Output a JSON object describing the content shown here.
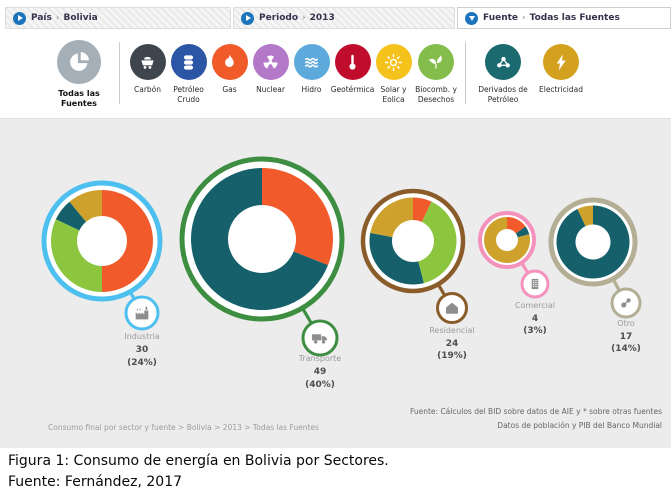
{
  "filter_bar": {
    "chevron": "›",
    "filters": [
      {
        "name": "País",
        "value": "Bolivia",
        "state": "collapsed"
      },
      {
        "name": "Periodo",
        "value": "2013",
        "state": "collapsed"
      },
      {
        "name": "Fuente",
        "value": "Todas las Fuentes",
        "state": "expanded"
      }
    ]
  },
  "sources": {
    "items": [
      {
        "label": "Todas las Fuentes",
        "icon": "pie-chart",
        "color": "#A4AFB7"
      },
      {
        "label": "Carbón",
        "icon": "coal-cart",
        "color": "#3E454C"
      },
      {
        "label": "Petróleo Crudo",
        "icon": "oil-barrels",
        "color": "#2B55A5"
      },
      {
        "label": "Gas",
        "icon": "flame",
        "color": "#F15A29"
      },
      {
        "label": "Nuclear",
        "icon": "radiation",
        "color": "#B478C8"
      },
      {
        "label": "Hidro",
        "icon": "water-waves",
        "color": "#5EA9DB"
      },
      {
        "label": "Geotérmica",
        "icon": "thermometer",
        "color": "#C00D2E"
      },
      {
        "label": "Solar y Eolica",
        "icon": "sun",
        "color": "#F5C21B"
      },
      {
        "label": "Biocomb. y Desechos",
        "icon": "leaves",
        "color": "#85BD4C"
      },
      {
        "label": "Derivados de Petróleo",
        "icon": "molecule",
        "color": "#1B6A70"
      },
      {
        "label": "Electricidad",
        "icon": "lightning",
        "color": "#D4A11E"
      }
    ]
  },
  "chart_data": {
    "type": "pie",
    "title": "Consumo final por sector y fuente, Bolivia 2013",
    "legend_note": "segment colors correspond to energy sources; percentages of each ring estimated from arc angles",
    "source_colors": {
      "Gas": "#F15B2B",
      "Biocomb. y Desechos": "#8CC63F",
      "Derivados de Petróleo": "#15606B",
      "Electricidad": "#CDA12C"
    },
    "sectors": [
      {
        "label": "Industria",
        "value": 30,
        "share": "(24%)",
        "ring_color": "#4EC0F0",
        "icon": "factory",
        "segments": [
          {
            "source": "Gas",
            "pct": 50
          },
          {
            "source": "Biocomb. y Desechos",
            "pct": 32
          },
          {
            "source": "Derivados de Petróleo",
            "pct": 7
          },
          {
            "source": "Electricidad",
            "pct": 11
          }
        ]
      },
      {
        "label": "Transporte",
        "value": 49,
        "share": "(40%)",
        "ring_color": "#3E8E41",
        "icon": "truck",
        "segments": [
          {
            "source": "Gas",
            "pct": 31
          },
          {
            "source": "Derivados de Petróleo",
            "pct": 69
          }
        ]
      },
      {
        "label": "Residencial",
        "value": 24,
        "share": "(19%)",
        "ring_color": "#8A5C2A",
        "icon": "house",
        "segments": [
          {
            "source": "Gas",
            "pct": 7
          },
          {
            "source": "Biocomb. y Desechos",
            "pct": 39
          },
          {
            "source": "Derivados de Petróleo",
            "pct": 32
          },
          {
            "source": "Electricidad",
            "pct": 22
          }
        ]
      },
      {
        "label": "Comercial",
        "value": 4,
        "share": "(3%)",
        "ring_color": "#F492BD",
        "icon": "office-building",
        "segments": [
          {
            "source": "Gas",
            "pct": 15
          },
          {
            "source": "Derivados de Petróleo",
            "pct": 6
          },
          {
            "source": "Electricidad",
            "pct": 79
          }
        ]
      },
      {
        "label": "Otro",
        "value": 17,
        "share": "(14%)",
        "ring_color": "#B3AE94",
        "icon": "nodes",
        "segments": [
          {
            "source": "Derivados de Petróleo",
            "pct": 93
          },
          {
            "source": "Electricidad",
            "pct": 7
          }
        ]
      }
    ]
  },
  "panel": {
    "breadcrumb": "Consumo final por sector y fuente > Bolivia > 2013 > Todas las Fuentes",
    "source_note_line1": "Fuente: Cálculos del BID sobre datos de AIE y * sobre otras fuentes",
    "source_note_line2": "Datos de población y PIB del Banco Mundial"
  },
  "caption": {
    "line1": "Figura 1: Consumo de energía en Bolivia por Sectores.",
    "line2": "Fuente: Fernández, 2017"
  }
}
